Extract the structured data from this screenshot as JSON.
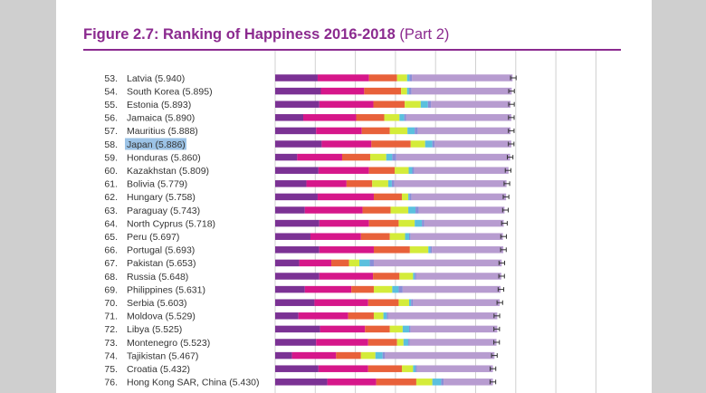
{
  "figure": {
    "title": "Figure 2.7: Ranking of Happiness 2016-2018",
    "title_suffix": "(Part 2)"
  },
  "chart_data": {
    "type": "bar",
    "stacked": true,
    "orientation": "horizontal",
    "title": "Figure 2.7: Ranking of Happiness 2016-2018 (Part 2)",
    "highlighted_row": "Japan (5.886)",
    "highlight_color": "#9cc3e6",
    "segment_colors": [
      "#7b3294",
      "#d6178a",
      "#e8613a",
      "#d4ec3a",
      "#5bc0de",
      "#8a8fd8",
      "#b79cd0"
    ],
    "rows": [
      {
        "rank": "53.",
        "label": "Latvia (5.940)",
        "total": 5.94,
        "segments": [
          1.06,
          1.28,
          0.7,
          0.25,
          0.06,
          0.06,
          2.51
        ]
      },
      {
        "rank": "54.",
        "label": "South Korea (5.895)",
        "total": 5.895,
        "segments": [
          1.14,
          1.08,
          0.92,
          0.15,
          0.05,
          0.06,
          2.5
        ]
      },
      {
        "rank": "55.",
        "label": "Estonia (5.893)",
        "total": 5.893,
        "segments": [
          1.1,
          1.35,
          0.78,
          0.4,
          0.18,
          0.08,
          1.98
        ]
      },
      {
        "rank": "56.",
        "label": "Jamaica (5.890)",
        "total": 5.89,
        "segments": [
          0.7,
          1.32,
          0.7,
          0.38,
          0.12,
          0.05,
          2.62
        ]
      },
      {
        "rank": "57.",
        "label": "Mauritius (5.888)",
        "total": 5.888,
        "segments": [
          1.02,
          1.14,
          0.7,
          0.44,
          0.18,
          0.08,
          2.31
        ]
      },
      {
        "rank": "58.",
        "label": "Japan (5.886)",
        "total": 5.886,
        "segments": [
          1.16,
          1.24,
          0.98,
          0.36,
          0.18,
          0.06,
          1.91
        ]
      },
      {
        "rank": "59.",
        "label": "Honduras (5.860)",
        "total": 5.86,
        "segments": [
          0.55,
          1.12,
          0.7,
          0.4,
          0.15,
          0.1,
          2.84
        ]
      },
      {
        "rank": "60.",
        "label": "Kazakhstan (5.809)",
        "total": 5.809,
        "segments": [
          1.08,
          1.26,
          0.64,
          0.35,
          0.09,
          0.05,
          2.35
        ]
      },
      {
        "rank": "61.",
        "label": "Bolivia (5.779)",
        "total": 5.779,
        "segments": [
          0.78,
          1.0,
          0.64,
          0.4,
          0.09,
          0.06,
          2.8
        ]
      },
      {
        "rank": "62.",
        "label": "Hungary (5.758)",
        "total": 5.758,
        "segments": [
          1.06,
          1.4,
          0.7,
          0.16,
          0.03,
          0.05,
          2.36
        ]
      },
      {
        "rank": "63.",
        "label": "Paraguay (5.743)",
        "total": 5.743,
        "segments": [
          0.74,
          1.44,
          0.7,
          0.44,
          0.18,
          0.08,
          2.14
        ]
      },
      {
        "rank": "64.",
        "label": "North Cyprus (5.718)",
        "total": 5.718,
        "segments": [
          1.1,
          1.24,
          0.74,
          0.4,
          0.18,
          0.06,
          1.98
        ]
      },
      {
        "rank": "65.",
        "label": "Peru (5.697)",
        "total": 5.697,
        "segments": [
          0.88,
          1.26,
          0.72,
          0.38,
          0.1,
          0.04,
          2.3
        ]
      },
      {
        "rank": "66.",
        "label": "Portugal (5.693)",
        "total": 5.693,
        "segments": [
          1.1,
          1.36,
          0.9,
          0.46,
          0.05,
          0.04,
          1.78
        ]
      },
      {
        "rank": "67.",
        "label": "Pakistan (5.653)",
        "total": 5.653,
        "segments": [
          0.6,
          0.8,
          0.44,
          0.26,
          0.26,
          0.1,
          3.19
        ]
      },
      {
        "rank": "68.",
        "label": "Russia (5.648)",
        "total": 5.648,
        "segments": [
          1.1,
          1.34,
          0.66,
          0.34,
          0.04,
          0.04,
          2.12
        ]
      },
      {
        "rank": "69.",
        "label": "Philippines (5.631)",
        "total": 5.631,
        "segments": [
          0.74,
          1.16,
          0.56,
          0.46,
          0.16,
          0.1,
          2.44
        ]
      },
      {
        "rank": "70.",
        "label": "Serbia (5.603)",
        "total": 5.603,
        "segments": [
          0.98,
          1.34,
          0.76,
          0.26,
          0.05,
          0.05,
          2.16
        ]
      },
      {
        "rank": "71.",
        "label": "Moldova (5.529)",
        "total": 5.529,
        "segments": [
          0.58,
          1.24,
          0.64,
          0.24,
          0.08,
          0.04,
          2.72
        ]
      },
      {
        "rank": "72.",
        "label": "Libya (5.525)",
        "total": 5.525,
        "segments": [
          1.12,
          1.12,
          0.62,
          0.32,
          0.16,
          0.04,
          2.16
        ]
      },
      {
        "rank": "73.",
        "label": "Montenegro (5.523)",
        "total": 5.523,
        "segments": [
          1.02,
          1.3,
          0.72,
          0.16,
          0.12,
          0.04,
          2.16
        ]
      },
      {
        "rank": "74.",
        "label": "Tajikistan (5.467)",
        "total": 5.467,
        "segments": [
          0.42,
          1.1,
          0.62,
          0.36,
          0.18,
          0.06,
          2.73
        ]
      },
      {
        "rank": "75.",
        "label": "Croatia (5.432)",
        "total": 5.432,
        "segments": [
          1.08,
          1.24,
          0.84,
          0.28,
          0.06,
          0.04,
          1.89
        ]
      },
      {
        "rank": "76.",
        "label": "Hong Kong SAR, China (5.430)",
        "total": 5.43,
        "segments": [
          1.3,
          1.22,
          1.0,
          0.4,
          0.22,
          0.06,
          1.23
        ]
      }
    ],
    "error_half_width": 0.07,
    "xlim": [
      0,
      8
    ],
    "grid_lines": [
      0,
      1,
      2,
      3,
      4,
      5,
      6,
      7,
      8
    ],
    "grid": true
  }
}
